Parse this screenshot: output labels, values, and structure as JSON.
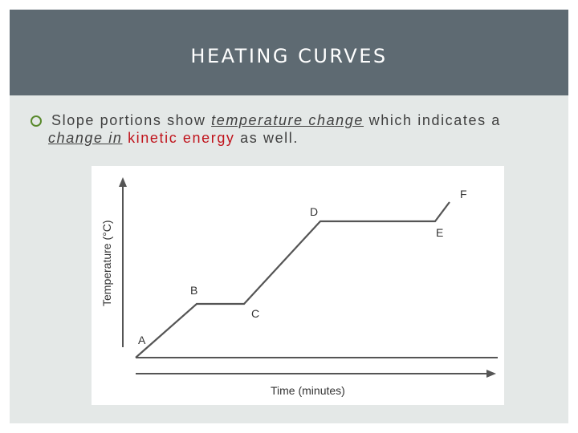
{
  "slide": {
    "title": "HEATING CURVES",
    "bullet": {
      "part1": "Slope portions show",
      "part2": "temperature change",
      "part3": "which indicates a",
      "part4": "change in",
      "part5": "kinetic energy",
      "part6": "as well."
    }
  },
  "figure": {
    "y_axis_label": "Temperature (°C)",
    "x_axis_label": "Time (minutes)",
    "points": [
      {
        "label": "A"
      },
      {
        "label": "B"
      },
      {
        "label": "C"
      },
      {
        "label": "D"
      },
      {
        "label": "E"
      },
      {
        "label": "F"
      }
    ]
  },
  "colors": {
    "title_bar": "#5e6a72",
    "background": "#e4e8e7",
    "accent_red": "#c0141c",
    "bullet": "#5a8a2e"
  }
}
